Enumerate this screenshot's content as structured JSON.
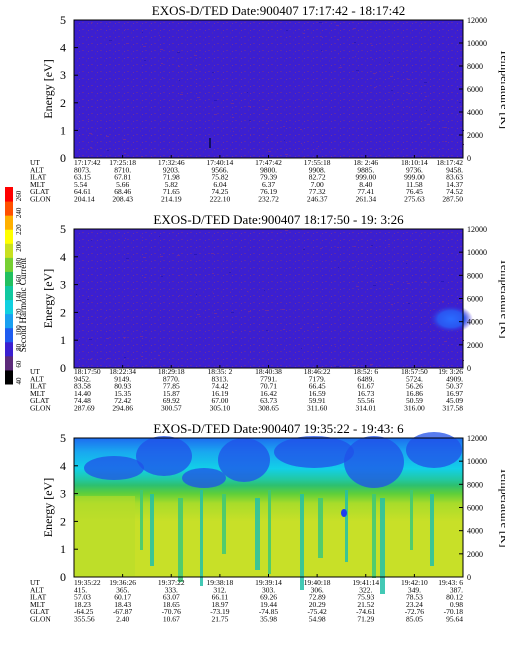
{
  "colors": {
    "background_deep": "#3c1fd0",
    "background_noise": "#5a2aa8",
    "blob_blue": "#2a55f0",
    "colorbar": [
      "#000000",
      "#5c2a7a",
      "#3b1fd0",
      "#1f5cf0",
      "#1aa0f0",
      "#11d0e0",
      "#11c8a0",
      "#22c060",
      "#77d033",
      "#c8e020",
      "#ffff00",
      "#ffb000",
      "#ff5000",
      "#ff0000"
    ]
  },
  "colorbar": {
    "label": "Second Harmonic Current",
    "ticks": [
      "40",
      "60",
      "80",
      "100",
      "120",
      "140",
      "160",
      "180",
      "200",
      "220",
      "240",
      "260"
    ]
  },
  "chart_data": [
    {
      "type": "heatmap",
      "title": "EXOS-D/TED   Date:900407  17:17:42 - 18:17:42",
      "ylabel": "Energy [eV]",
      "ylabel_right": "Temperature [K]",
      "yticks": [
        "0",
        "1",
        "2",
        "3",
        "4",
        "5"
      ],
      "ylim": [
        0,
        5
      ],
      "yticks_right": [
        "0",
        "2000",
        "4000",
        "6000",
        "8000",
        "10000",
        "12000"
      ],
      "ylim_right": [
        0,
        12000
      ],
      "row_labels": [
        "UT",
        "ALT",
        "ILAT",
        "MLT",
        "GLAT",
        "GLON"
      ],
      "columns": [
        [
          "17:17:42",
          "8073.",
          "63.15",
          "5.54",
          "64.61",
          "204.14"
        ],
        [
          "17:25:18",
          "8710.",
          "67.81",
          "5.66",
          "68.46",
          "208.43"
        ],
        [
          "17:32:46",
          "9203.",
          "71.98",
          "5.82",
          "71.65",
          "214.19"
        ],
        [
          "17:40:14",
          "9566.",
          "75.82",
          "6.04",
          "74.25",
          "222.10"
        ],
        [
          "17:47:42",
          "9800.",
          "79.39",
          "6.37",
          "76.19",
          "232.72"
        ],
        [
          "17:55:18",
          "9908.",
          "82.72",
          "7.00",
          "77.32",
          "246.37"
        ],
        [
          "18: 2:46",
          "9885.",
          "999.00",
          "8.40",
          "77.41",
          "261.34"
        ],
        [
          "18:10:14",
          "9736.",
          "999.00",
          "11.58",
          "76.45",
          "275.63"
        ],
        [
          "18:17:42",
          "9458.",
          "83.63",
          "14.37",
          "74.52",
          "287.50"
        ]
      ]
    },
    {
      "type": "heatmap",
      "title": "EXOS-D/TED   Date:900407  18:17:50 - 19: 3:26",
      "ylabel": "Energy [eV]",
      "ylabel_right": "Temperature [K]",
      "yticks": [
        "0",
        "1",
        "2",
        "3",
        "4",
        "5"
      ],
      "ylim": [
        0,
        5
      ],
      "yticks_right": [
        "0",
        "2000",
        "4000",
        "6000",
        "8000",
        "10000",
        "12000"
      ],
      "ylim_right": [
        0,
        12000
      ],
      "row_labels": [
        "UT",
        "ALT",
        "ILAT",
        "MLT",
        "GLAT",
        "GLON"
      ],
      "columns": [
        [
          "18:17:50",
          "9452.",
          "83.58",
          "14.40",
          "74.48",
          "287.69"
        ],
        [
          "18:22:34",
          "9149.",
          "80.93",
          "15.35",
          "72.42",
          "294.86"
        ],
        [
          "18:29:18",
          "8770.",
          "77.85",
          "15.87",
          "69.92",
          "300.57"
        ],
        [
          "18:35: 2",
          "8313.",
          "74.42",
          "16.19",
          "67.00",
          "305.10"
        ],
        [
          "18:40:38",
          "7791.",
          "70.71",
          "16.42",
          "63.73",
          "308.65"
        ],
        [
          "18:46:22",
          "7179.",
          "66.45",
          "16.59",
          "59.91",
          "311.60"
        ],
        [
          "18:52: 6",
          "6489.",
          "61.67",
          "16.73",
          "55.56",
          "314.01"
        ],
        [
          "18:57:50",
          "5724.",
          "56.26",
          "16.86",
          "50.59",
          "316.00"
        ],
        [
          "19: 3:26",
          "4909.",
          "50.37",
          "16.97",
          "45.09",
          "317.58"
        ]
      ]
    },
    {
      "type": "heatmap",
      "title": "EXOS-D/TED   Date:900407  19:35:22 - 19:43: 6",
      "ylabel": "Energy [eV]",
      "ylabel_right": "Temperature [K]",
      "yticks": [
        "0",
        "1",
        "2",
        "3",
        "4",
        "5"
      ],
      "ylim": [
        0,
        5
      ],
      "yticks_right": [
        "0",
        "2000",
        "4000",
        "6000",
        "8000",
        "10000",
        "12000"
      ],
      "ylim_right": [
        0,
        12000
      ],
      "row_labels": [
        "UT",
        "ALT",
        "ILAT",
        "MLT",
        "GLAT",
        "GLON"
      ],
      "columns": [
        [
          "19:35:22",
          "415.",
          "57.03",
          "18.23",
          "-64.25",
          "355.56"
        ],
        [
          "19:36:26",
          "365.",
          "60.17",
          "18.43",
          "-67.87",
          "2.40"
        ],
        [
          "19:37:22",
          "333.",
          "63.07",
          "18.65",
          "-70.76",
          "10.67"
        ],
        [
          "19:38:18",
          "312.",
          "66.11",
          "18.97",
          "-73.19",
          "21.75"
        ],
        [
          "19:39:14",
          "303.",
          "69.26",
          "19.44",
          "-74.85",
          "35.98"
        ],
        [
          "19:40:18",
          "306.",
          "72.89",
          "20.29",
          "-75.42",
          "54.98"
        ],
        [
          "19:41:14",
          "322.",
          "75.93",
          "21.52",
          "-74.61",
          "71.29"
        ],
        [
          "19:42:10",
          "349.",
          "78.53",
          "23.24",
          "-72.76",
          "85.05"
        ],
        [
          "19:43: 6",
          "387.",
          "80.12",
          "0.98",
          "-70.18",
          "95.64"
        ]
      ]
    }
  ]
}
